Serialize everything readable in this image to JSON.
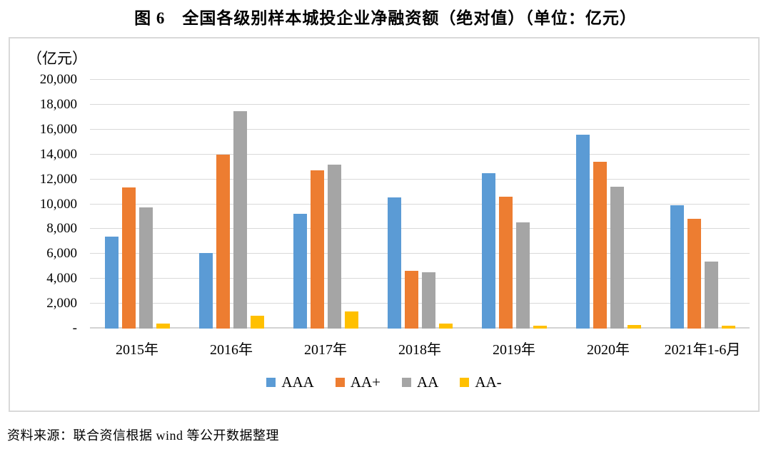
{
  "title": "图 6　全国各级别样本城投企业净融资额（绝对值）（单位：亿元）",
  "source_note": "资料来源：联合资信根据 wind 等公开数据整理",
  "chart_data": {
    "type": "bar",
    "title": "图 6　全国各级别样本城投企业净融资额（绝对值）（单位：亿元）",
    "unit_label": "（亿元）",
    "categories": [
      "2015年",
      "2016年",
      "2017年",
      "2018年",
      "2019年",
      "2020年",
      "2021年1-6月"
    ],
    "series": [
      {
        "name": "AAA",
        "color": "#5B9BD5",
        "values": [
          7400,
          6100,
          9250,
          10550,
          12500,
          15600,
          9900
        ]
      },
      {
        "name": "AA+",
        "color": "#ED7D31",
        "values": [
          11350,
          14000,
          12750,
          4650,
          10600,
          13400,
          8850
        ]
      },
      {
        "name": "AA",
        "color": "#A5A5A5",
        "values": [
          9750,
          17500,
          13200,
          4550,
          8550,
          11400,
          5400
        ]
      },
      {
        "name": "AA-",
        "color": "#FFC000",
        "values": [
          400,
          1050,
          1400,
          400,
          250,
          300,
          250
        ]
      }
    ],
    "ylim": [
      0,
      20000
    ],
    "ytick_step": 2000,
    "ytick_labels": [
      "-",
      "2,000",
      "4,000",
      "6,000",
      "8,000",
      "10,000",
      "12,000",
      "14,000",
      "16,000",
      "18,000",
      "20,000"
    ],
    "grid": true,
    "gridline_color": "#D9D9D9",
    "legend_position": "bottom",
    "legend_labels": [
      "AAA",
      "AA+",
      "AA",
      "AA-"
    ]
  }
}
